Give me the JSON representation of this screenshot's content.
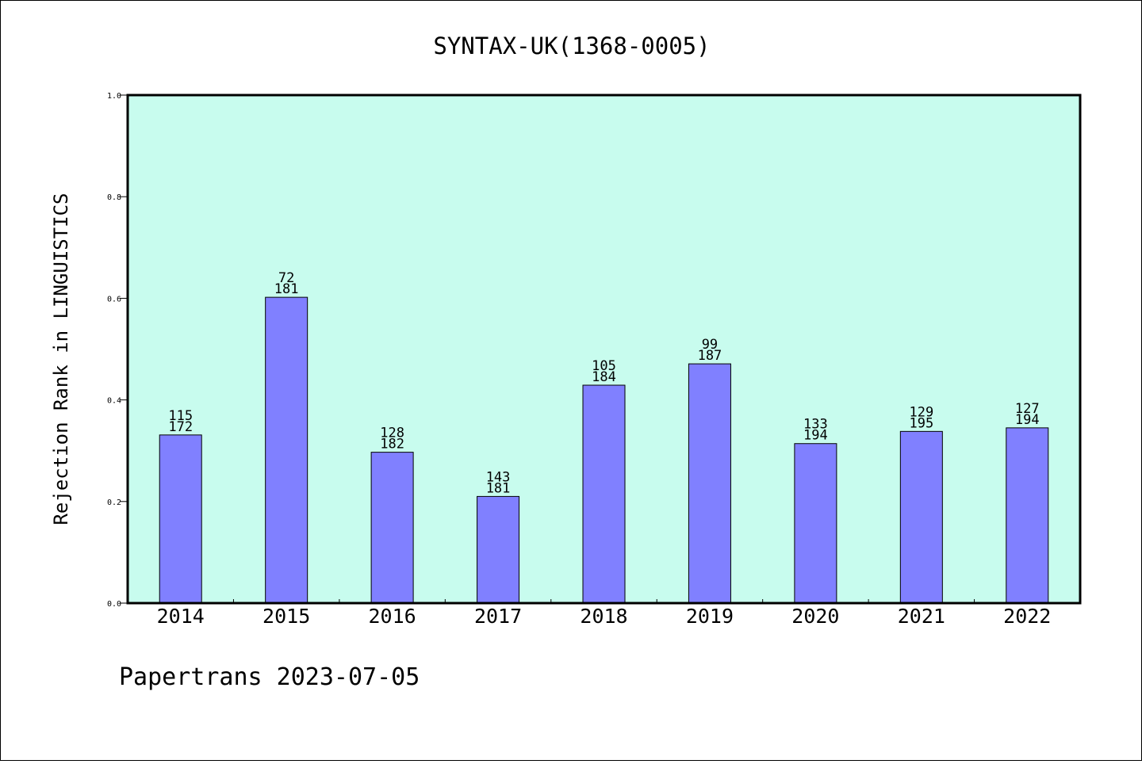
{
  "chart_data": {
    "type": "bar",
    "title": "SYNTAX-UK(1368-0005)",
    "xlabel": "",
    "ylabel": "Rejection Rank in LINGUISTICS",
    "ylim": [
      0.0,
      1.0
    ],
    "yticks": [
      "0.0",
      "0.2",
      "0.4",
      "0.6",
      "0.8",
      "1.0"
    ],
    "categories": [
      "2014",
      "2015",
      "2016",
      "2017",
      "2018",
      "2019",
      "2020",
      "2021",
      "2022"
    ],
    "values": [
      0.331,
      0.602,
      0.297,
      0.21,
      0.429,
      0.471,
      0.314,
      0.338,
      0.345
    ],
    "data_labels": [
      {
        "rank": "115",
        "total": "172"
      },
      {
        "rank": "72",
        "total": "181"
      },
      {
        "rank": "128",
        "total": "182"
      },
      {
        "rank": "143",
        "total": "181"
      },
      {
        "rank": "105",
        "total": "184"
      },
      {
        "rank": "99",
        "total": "187"
      },
      {
        "rank": "133",
        "total": "194"
      },
      {
        "rank": "129",
        "total": "195"
      },
      {
        "rank": "127",
        "total": "194"
      }
    ],
    "grid": false,
    "colors": {
      "plot_background": "#c8fcee",
      "bar_fill": "#8080ff",
      "bar_stroke": "#000000"
    }
  },
  "footer": "Papertrans 2023-07-05"
}
